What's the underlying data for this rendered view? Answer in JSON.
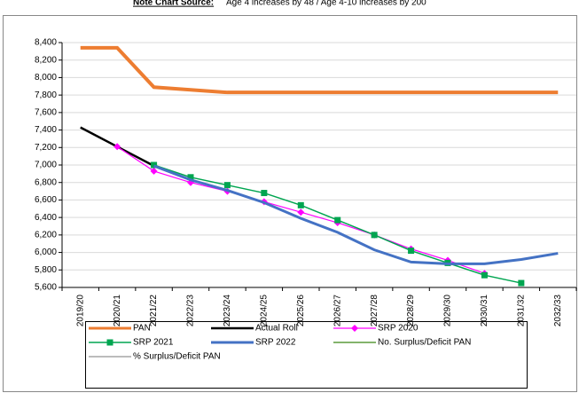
{
  "chart_data": {
    "type": "line",
    "note_label": "Note Chart Source:",
    "note": "Age 4 increases by 48 / Age 4-10 increases by 200",
    "categories": [
      "2019/20",
      "2020/21",
      "2021/22",
      "2022/23",
      "2023/24",
      "2024/25",
      "2025/26",
      "2026/27",
      "2027/28",
      "2028/29",
      "2029/30",
      "2030/31",
      "2031/32",
      "2032/33"
    ],
    "series": [
      {
        "name": "PAN",
        "color": "#ed7d31",
        "width": 4,
        "values": [
          8340,
          8340,
          7890,
          7860,
          7830,
          7830,
          7830,
          7830,
          7830,
          7830,
          7830,
          7830,
          7830,
          7830
        ]
      },
      {
        "name": "Actual Roll",
        "color": "#000000",
        "width": 2.5,
        "values": [
          7430,
          7210,
          6990,
          6830,
          null,
          null,
          null,
          null,
          null,
          null,
          null,
          null,
          null,
          null
        ]
      },
      {
        "name": "SRP 2020",
        "color": "#ff00ff",
        "width": 1.2,
        "marker": "diamond",
        "values": [
          null,
          7210,
          6930,
          6800,
          6700,
          6580,
          6460,
          6340,
          6200,
          6040,
          5910,
          5760,
          null,
          null
        ]
      },
      {
        "name": "SRP 2021",
        "color": "#00a550",
        "width": 1.5,
        "marker": "square",
        "values": [
          null,
          null,
          7000,
          6860,
          6770,
          6680,
          6540,
          6370,
          6200,
          6020,
          5880,
          5740,
          5650,
          null
        ]
      },
      {
        "name": "SRP 2022",
        "color": "#4472c4",
        "width": 3,
        "values": [
          null,
          null,
          6990,
          6830,
          6710,
          6570,
          6390,
          6230,
          6030,
          5890,
          5870,
          5870,
          5920,
          5990
        ]
      },
      {
        "name": "No. Surplus/Deficit PAN",
        "color": "#5b9b3b",
        "width": 1.5,
        "values": [
          null,
          null,
          null,
          null,
          null,
          null,
          null,
          null,
          null,
          null,
          null,
          null,
          null,
          null
        ]
      },
      {
        "name": "% Surplus/Deficit PAN",
        "color": "#a5a5a5",
        "width": 1.5,
        "values": [
          null,
          null,
          null,
          null,
          null,
          null,
          null,
          null,
          null,
          null,
          null,
          null,
          null,
          null
        ]
      }
    ],
    "ylim": [
      5600,
      8400
    ],
    "yticks": [
      {
        "value": 5600,
        "label": "5,600"
      },
      {
        "value": 5800,
        "label": "5,800"
      },
      {
        "value": 6000,
        "label": "6,000"
      },
      {
        "value": 6200,
        "label": "6,200"
      },
      {
        "value": 6400,
        "label": "6,400"
      },
      {
        "value": 6600,
        "label": "6,600"
      },
      {
        "value": 6800,
        "label": "6,800"
      },
      {
        "value": 7000,
        "label": "7,000"
      },
      {
        "value": 7200,
        "label": "7,200"
      },
      {
        "value": 7400,
        "label": "7,400"
      },
      {
        "value": 7600,
        "label": "7,600"
      },
      {
        "value": 7800,
        "label": "7,800"
      },
      {
        "value": 8000,
        "label": "8,000"
      },
      {
        "value": 8200,
        "label": "8,200"
      },
      {
        "value": 8400,
        "label": "8,400"
      }
    ],
    "grid": true
  }
}
